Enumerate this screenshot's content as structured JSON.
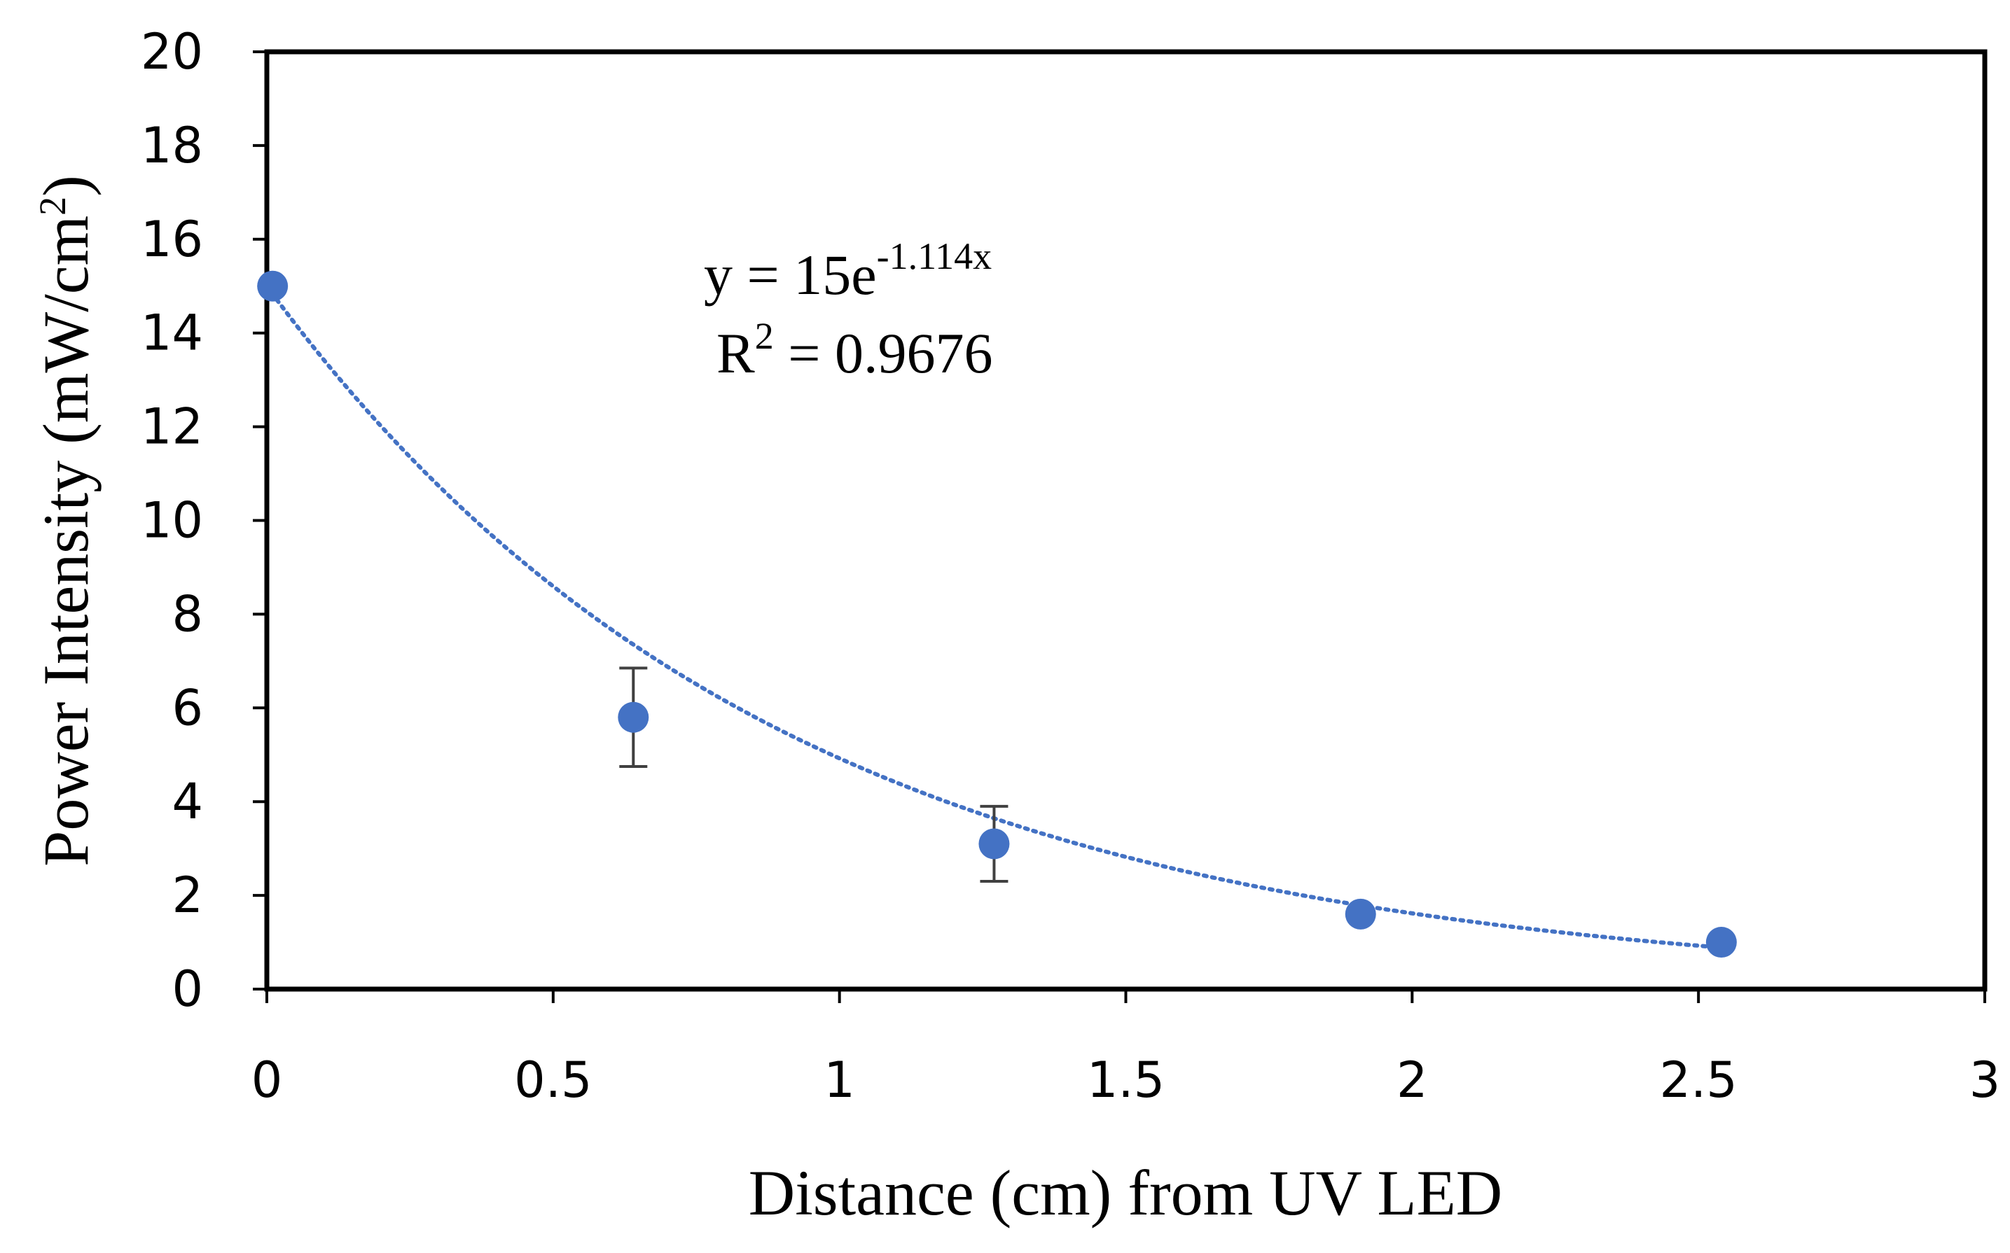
{
  "chart_data": {
    "type": "scatter",
    "xlabel": "Distance (cm) from UV LED",
    "ylabel_main": "Power Intensity (mW/cm",
    "ylabel_sup": "2",
    "ylabel_end": ")",
    "xlim": [
      0,
      3
    ],
    "ylim": [
      0,
      20
    ],
    "x_ticks": [
      0,
      0.5,
      1,
      1.5,
      2,
      2.5,
      3
    ],
    "y_ticks": [
      0,
      2,
      4,
      6,
      8,
      10,
      12,
      14,
      16,
      18,
      20
    ],
    "grid": false,
    "legend": "none",
    "series": [
      {
        "color": "#4472c4",
        "points": [
          {
            "x": 0.01,
            "y": 15.0,
            "err": 0
          },
          {
            "x": 0.64,
            "y": 5.8,
            "err": 1.05
          },
          {
            "x": 1.27,
            "y": 3.1,
            "err": 0.8
          },
          {
            "x": 1.91,
            "y": 1.6,
            "err": 0
          },
          {
            "x": 2.54,
            "y": 1.0,
            "err": 0
          }
        ]
      }
    ],
    "trendline": {
      "type": "exponential",
      "a": 15,
      "b": -1.114,
      "x_range": [
        0,
        2.54
      ],
      "color": "#4472c4",
      "style": "dotted"
    },
    "annotation": {
      "eq_main": "y = 15e",
      "eq_sup": "-1.114x",
      "r2_main": "R",
      "r2_sup": "2",
      "r2_end": " = 0.9676"
    }
  }
}
